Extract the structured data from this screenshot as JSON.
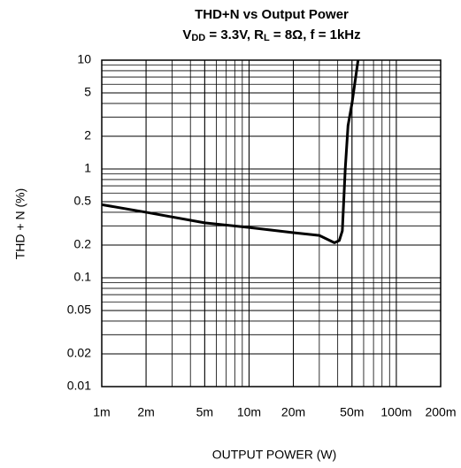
{
  "chart_data": {
    "type": "line",
    "title": "THD+N vs Output Power",
    "subtitle_parts": [
      {
        "text": "V"
      },
      {
        "text": "DD",
        "sub": true
      },
      {
        "text": " = 3.3V, R"
      },
      {
        "text": "L",
        "sub": true
      },
      {
        "text": " = 8Ω, f = 1kHz"
      }
    ],
    "x_label": "OUTPUT POWER (W)",
    "y_label": "THD + N (%)",
    "log_x": true,
    "log_y": true,
    "grid": true,
    "minor_grid": true,
    "xlim": [
      0.001,
      0.2
    ],
    "ylim": [
      0.01,
      10
    ],
    "xticks": [
      {
        "value": 0.001,
        "label": "1m"
      },
      {
        "value": 0.002,
        "label": "2m"
      },
      {
        "value": 0.005,
        "label": "5m"
      },
      {
        "value": 0.01,
        "label": "10m"
      },
      {
        "value": 0.02,
        "label": "20m"
      },
      {
        "value": 0.05,
        "label": "50m"
      },
      {
        "value": 0.1,
        "label": "100m"
      },
      {
        "value": 0.2,
        "label": "200m"
      }
    ],
    "yticks": [
      0.01,
      0.02,
      0.05,
      0.1,
      0.2,
      0.5,
      1,
      2,
      5,
      10
    ],
    "series": [
      {
        "color": "#000000",
        "x": [
          0.001,
          0.002,
          0.005,
          0.01,
          0.02,
          0.03,
          0.038,
          0.041,
          0.043,
          0.045,
          0.047,
          0.05,
          0.055
        ],
        "values": [
          0.47,
          0.4,
          0.32,
          0.29,
          0.26,
          0.245,
          0.21,
          0.22,
          0.27,
          1,
          2.5,
          4,
          10
        ]
      }
    ]
  }
}
